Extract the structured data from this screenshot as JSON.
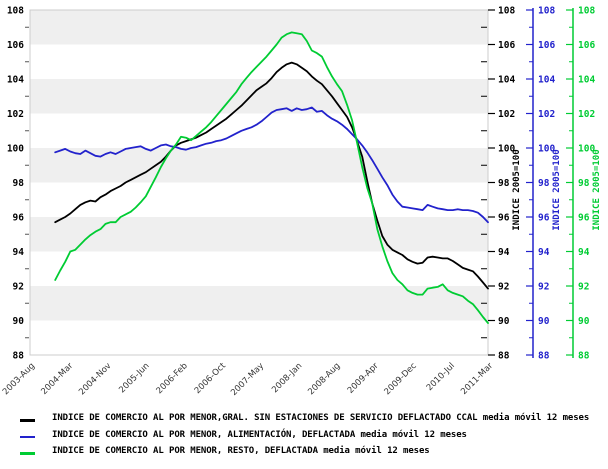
{
  "chart_data": {
    "type": "line",
    "title": "",
    "x_axis": {
      "tick_labels": [
        "2003-Aug",
        "2004-Mar",
        "2004-Nov",
        "2005-Jun",
        "2006-Feb",
        "2006-Oct",
        "2007-May",
        "2008-Jan",
        "2008-Aug",
        "2009-Apr",
        "2009-Dec",
        "2010-Jul",
        "2011-Mar"
      ],
      "frequency": "monthly",
      "series_start_month": "2004-Jan",
      "series_end_month": "2011-Mar"
    },
    "y_axis": {
      "range": [
        88,
        108
      ],
      "tick_step": 2,
      "minor_tick_step": 1
    },
    "right_axes": [
      {
        "title": "INDICE 2005=100",
        "color": "#000000"
      },
      {
        "title": "INDICE 2005=100",
        "color": "#2222cc"
      },
      {
        "title": "INDICE 2005=100",
        "color": "#00cc33"
      }
    ],
    "plot": {
      "band_color": "#efefef",
      "border_color": "#cccccc",
      "grid": "horizontal-bands"
    },
    "legend_position": "bottom",
    "series": [
      {
        "name": "INDICE DE COMERCIO AL POR MENOR,GRAL. SIN ESTACIONES DE SERVICIO DEFLACTADO CCAL media móvil 12 meses",
        "color": "#000000",
        "values": [
          95.7,
          95.85,
          96.0,
          96.2,
          96.45,
          96.7,
          96.85,
          96.95,
          96.9,
          97.15,
          97.3,
          97.5,
          97.65,
          97.8,
          98.0,
          98.15,
          98.3,
          98.45,
          98.6,
          98.8,
          99.0,
          99.2,
          99.5,
          99.85,
          100.15,
          100.3,
          100.4,
          100.5,
          100.6,
          100.75,
          100.9,
          101.1,
          101.3,
          101.5,
          101.7,
          101.95,
          102.2,
          102.45,
          102.75,
          103.05,
          103.35,
          103.55,
          103.75,
          104.05,
          104.4,
          104.65,
          104.85,
          104.95,
          104.85,
          104.65,
          104.45,
          104.15,
          103.9,
          103.7,
          103.35,
          103.0,
          102.6,
          102.2,
          101.8,
          101.2,
          100.4,
          99.5,
          98.1,
          96.8,
          95.8,
          94.9,
          94.4,
          94.1,
          93.95,
          93.8,
          93.55,
          93.4,
          93.3,
          93.35,
          93.65,
          93.7,
          93.65,
          93.6,
          93.6,
          93.45,
          93.25,
          93.05,
          92.95,
          92.85,
          92.55,
          92.2,
          91.85
        ]
      },
      {
        "name": "INDICE DE COMERCIO AL POR MENOR, ALIMENTACIÓN, DEFLACTADA media móvil 12 meses",
        "color": "#2222cc",
        "values": [
          99.75,
          99.85,
          99.95,
          99.8,
          99.7,
          99.65,
          99.85,
          99.7,
          99.55,
          99.5,
          99.65,
          99.75,
          99.65,
          99.8,
          99.95,
          100.0,
          100.05,
          100.1,
          99.95,
          99.85,
          100.0,
          100.15,
          100.2,
          100.1,
          100.05,
          99.95,
          99.9,
          100.0,
          100.05,
          100.15,
          100.25,
          100.3,
          100.4,
          100.45,
          100.55,
          100.7,
          100.85,
          101.0,
          101.1,
          101.2,
          101.35,
          101.55,
          101.8,
          102.05,
          102.2,
          102.25,
          102.3,
          102.15,
          102.3,
          102.2,
          102.25,
          102.35,
          102.1,
          102.15,
          101.9,
          101.7,
          101.55,
          101.35,
          101.1,
          100.8,
          100.5,
          100.15,
          99.75,
          99.3,
          98.8,
          98.3,
          97.85,
          97.3,
          96.9,
          96.6,
          96.55,
          96.5,
          96.45,
          96.4,
          96.7,
          96.6,
          96.5,
          96.45,
          96.4,
          96.4,
          96.45,
          96.4,
          96.4,
          96.35,
          96.25,
          96.0,
          95.7
        ]
      },
      {
        "name": "INDICE DE COMERCIO AL POR MENOR, RESTO, DEFLACTADA media móvil 12 meses",
        "color": "#00cc33",
        "values": [
          92.35,
          92.9,
          93.4,
          94.0,
          94.1,
          94.4,
          94.7,
          94.95,
          95.15,
          95.3,
          95.6,
          95.7,
          95.7,
          96.0,
          96.15,
          96.3,
          96.55,
          96.85,
          97.2,
          97.75,
          98.3,
          98.9,
          99.4,
          99.85,
          100.2,
          100.65,
          100.6,
          100.45,
          100.7,
          100.95,
          101.2,
          101.5,
          101.85,
          102.2,
          102.55,
          102.9,
          103.25,
          103.7,
          104.05,
          104.4,
          104.7,
          105.0,
          105.3,
          105.65,
          106.0,
          106.4,
          106.6,
          106.7,
          106.65,
          106.6,
          106.2,
          105.65,
          105.5,
          105.3,
          104.7,
          104.15,
          103.7,
          103.3,
          102.5,
          101.6,
          100.3,
          98.9,
          97.7,
          96.8,
          95.3,
          94.3,
          93.45,
          92.75,
          92.35,
          92.1,
          91.75,
          91.6,
          91.5,
          91.5,
          91.85,
          91.9,
          91.95,
          92.1,
          91.75,
          91.6,
          91.5,
          91.4,
          91.15,
          90.95,
          90.6,
          90.2,
          89.85
        ]
      }
    ]
  },
  "legend": {
    "items": [
      {
        "label": "INDICE DE COMERCIO AL POR MENOR,GRAL. SIN ESTACIONES DE SERVICIO DEFLACTADO CCAL media móvil 12 meses",
        "color": "#000000"
      },
      {
        "label": "INDICE DE COMERCIO AL POR MENOR, ALIMENTACIÓN, DEFLACTADA media móvil 12 meses",
        "color": "#2222cc"
      },
      {
        "label": "INDICE DE COMERCIO AL POR MENOR, RESTO, DEFLACTADA media móvil 12 meses",
        "color": "#00cc33"
      }
    ]
  }
}
